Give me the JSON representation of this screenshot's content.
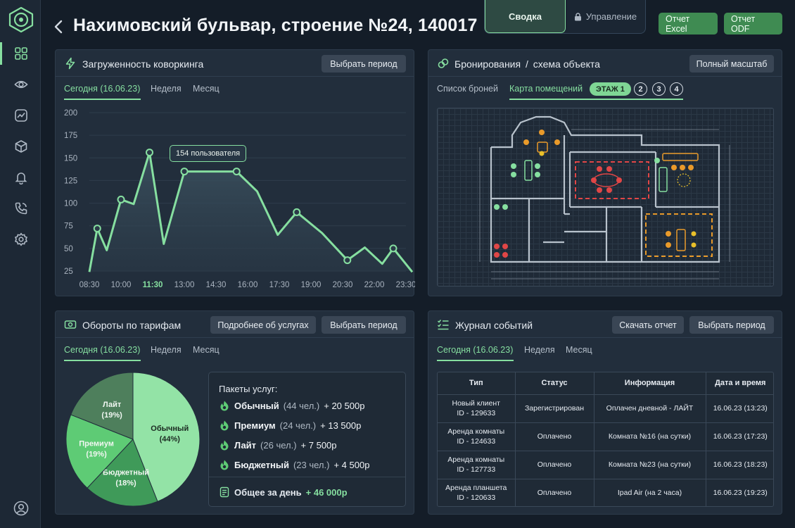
{
  "header": {
    "title": "Нахимовский бульвар, строение №24, 140017",
    "segments": [
      {
        "label": "Сводка",
        "active": true
      },
      {
        "label": "Управление",
        "active": false,
        "icon": "lock-icon"
      }
    ],
    "buttons": {
      "excel": "Отчет Excel",
      "odf": "Отчет ODF"
    }
  },
  "sidebar": {
    "icons": [
      "grid-icon",
      "eye-icon",
      "trend-icon",
      "box-icon",
      "bell-icon",
      "phone-icon",
      "gear-icon"
    ],
    "active_index": 0,
    "bottom_icon": "user-icon",
    "accent": "#86dfa0"
  },
  "load_panel": {
    "title": "Загруженность коворкинга",
    "period_button": "Выбрать период",
    "tabs": [
      "Сегодня (16.06.23)",
      "Неделя",
      "Месяц"
    ],
    "active_tab": 0,
    "tooltip": "154 пользователя"
  },
  "chart_data": {
    "type": "area",
    "title": "",
    "xlabel": "",
    "ylabel": "",
    "ylim": [
      25,
      200
    ],
    "y_ticks": [
      200,
      175,
      150,
      125,
      100,
      75,
      50,
      25
    ],
    "x_ticks": [
      "08:30",
      "10:00",
      "11:30",
      "13:00",
      "14:30",
      "16:00",
      "17:30",
      "19:00",
      "20:30",
      "22:00",
      "23:30"
    ],
    "highlighted_tick": "11:30",
    "series": [
      {
        "x": [
          0.0,
          0.25,
          0.55,
          1.0,
          1.4,
          1.9,
          2.35,
          3.0,
          3.7,
          4.65,
          5.3,
          5.95,
          6.55,
          7.35,
          8.15,
          8.7,
          9.25,
          9.6,
          10.2
        ],
        "y": [
          24,
          72,
          48,
          104,
          99,
          156,
          55,
          135,
          135,
          135,
          113,
          65,
          90,
          67,
          37,
          51,
          33,
          50,
          24
        ],
        "markers": [
          1,
          3,
          5,
          7,
          9,
          12,
          14,
          17
        ],
        "color": "#86dfa0"
      }
    ],
    "grid": "horizontal"
  },
  "bookings_panel": {
    "title": "Бронирования",
    "title_suffix": "схема объекта",
    "full_scale_button": "Полный масштаб",
    "tabs": [
      "Список броней",
      "Карта помещений"
    ],
    "active_tab": 1,
    "floors": [
      "ЭТАЖ 1",
      "2",
      "3",
      "4"
    ],
    "active_floor": 0
  },
  "tariffs_panel": {
    "title": "Обороты по тарифам",
    "details_button": "Подробнее об услугах",
    "period_button": "Выбрать период",
    "tabs": [
      "Сегодня (16.06.23)",
      "Неделя",
      "Месяц"
    ],
    "active_tab": 0,
    "pie": [
      {
        "name": "Обычный",
        "percent": 44,
        "label": "(44%)",
        "color": "#93e3a6"
      },
      {
        "name": "Бюджетный",
        "percent": 18,
        "label": "(18%)",
        "color": "#3f9a59"
      },
      {
        "name": "Премиум",
        "percent": 19,
        "label": "(19%)",
        "color": "#5ecb75"
      },
      {
        "name": "Лайт",
        "percent": 19,
        "label": "(19%)",
        "color": "#4e7f5c"
      }
    ],
    "services_title": "Пакеты услуг:",
    "services": [
      {
        "name": "Обычный",
        "count": "(44 чел.)",
        "sum": "+ 20 500р"
      },
      {
        "name": "Премиум",
        "count": "(24 чел.)",
        "sum": "+ 13 500р"
      },
      {
        "name": "Лайт",
        "count": "(26 чел.)",
        "sum": "+ 7 500р"
      },
      {
        "name": "Бюджетный",
        "count": "(23 чел.)",
        "sum": "+ 4 500р"
      }
    ],
    "total_label": "Общее за день",
    "total_sum": "+ 46 000р"
  },
  "log_panel": {
    "title": "Журнал событий",
    "download_button": "Скачать отчет",
    "period_button": "Выбрать период",
    "tabs": [
      "Сегодня (16.06.23)",
      "Неделя",
      "Месяц"
    ],
    "active_tab": 0,
    "columns": [
      "Тип",
      "Статус",
      "Информация",
      "Дата и время"
    ],
    "rows": [
      {
        "type": "Новый клиент",
        "id": "ID - 129633",
        "status": "Зарегистрирован",
        "info": "Оплачен дневной - ЛАЙТ",
        "date": "16.06.23 (13:23)"
      },
      {
        "type": "Аренда комнаты",
        "id": "ID - 124633",
        "status": "Оплачено",
        "info": "Комната №16 (на сутки)",
        "date": "16.06.23 (17:23)"
      },
      {
        "type": "Аренда комнаты",
        "id": "ID - 127733",
        "status": "Оплачено",
        "info": "Комната №23 (на сутки)",
        "date": "16.06.23 (18:23)"
      },
      {
        "type": "Аренда планшета",
        "id": "ID - 120633",
        "status": "Оплачено",
        "info": "Ipad Air (на 2 часа)",
        "date": "16.06.23 (19:23)"
      }
    ]
  }
}
